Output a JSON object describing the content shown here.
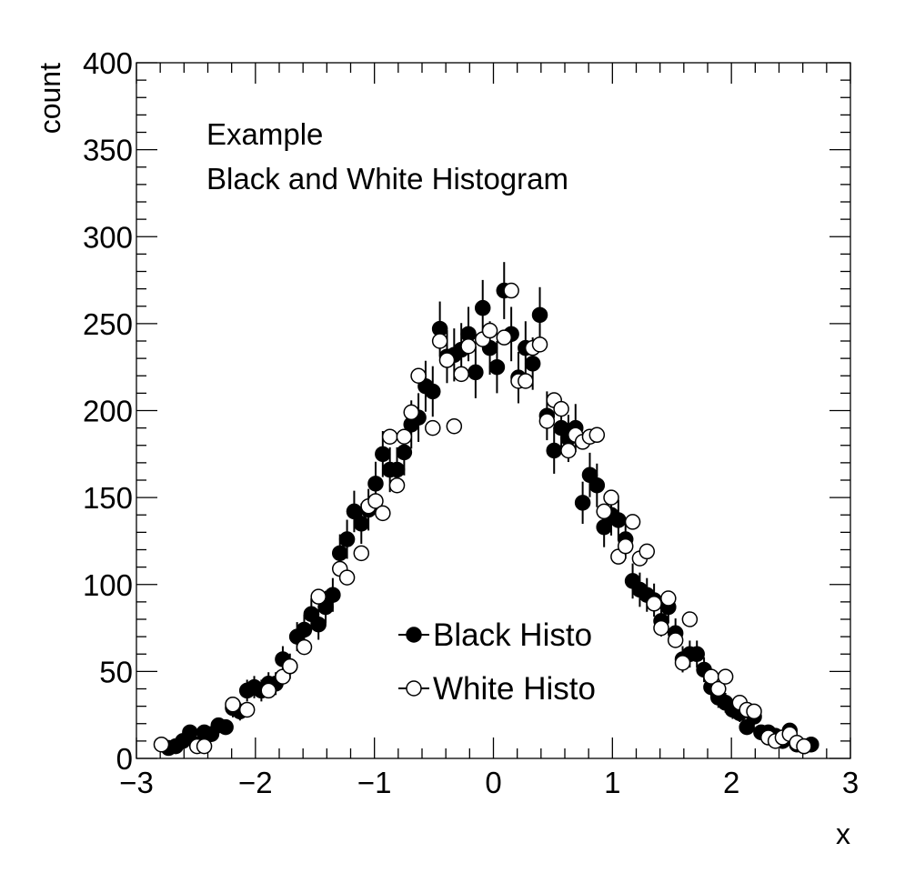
{
  "chart_data": {
    "type": "scatter",
    "title": "",
    "xlabel": "x",
    "ylabel": "count",
    "xlim": [
      -3,
      3
    ],
    "ylim": [
      0,
      400
    ],
    "xticks": [
      "−3",
      "−2",
      "−1",
      "0",
      "1",
      "2",
      "3"
    ],
    "xtick_values": [
      -3,
      -2,
      -1,
      0,
      1,
      2,
      3
    ],
    "yticks": [
      "0",
      "50",
      "100",
      "150",
      "200",
      "250",
      "300",
      "350",
      "400"
    ],
    "ytick_values": [
      0,
      50,
      100,
      150,
      200,
      250,
      300,
      350,
      400
    ],
    "grid": false,
    "annotations": [
      "Example",
      "Black and White Histogram"
    ],
    "legend": {
      "placement": "bottom-center",
      "entries": [
        "Black Histo",
        "White Histo"
      ]
    },
    "series": [
      {
        "name": "Black Histo",
        "marker": "filled-circle",
        "color": "#000000",
        "error_bars": "sqrt",
        "x": [
          -2.73,
          -2.67,
          -2.61,
          -2.55,
          -2.49,
          -2.43,
          -2.37,
          -2.31,
          -2.25,
          -2.19,
          -2.13,
          -2.07,
          -2.01,
          -1.95,
          -1.89,
          -1.83,
          -1.77,
          -1.71,
          -1.65,
          -1.59,
          -1.53,
          -1.47,
          -1.41,
          -1.35,
          -1.29,
          -1.23,
          -1.17,
          -1.11,
          -1.05,
          -0.99,
          -0.93,
          -0.87,
          -0.81,
          -0.75,
          -0.69,
          -0.63,
          -0.57,
          -0.51,
          -0.45,
          -0.39,
          -0.33,
          -0.27,
          -0.21,
          -0.15,
          -0.09,
          -0.03,
          0.03,
          0.09,
          0.15,
          0.21,
          0.27,
          0.33,
          0.39,
          0.45,
          0.51,
          0.57,
          0.63,
          0.69,
          0.75,
          0.81,
          0.87,
          0.93,
          0.99,
          1.05,
          1.11,
          1.17,
          1.23,
          1.29,
          1.35,
          1.41,
          1.47,
          1.53,
          1.59,
          1.65,
          1.71,
          1.77,
          1.83,
          1.89,
          1.95,
          2.01,
          2.07,
          2.13,
          2.19,
          2.25,
          2.31,
          2.37,
          2.43,
          2.49,
          2.55,
          2.61,
          2.67
        ],
        "values": [
          6,
          7,
          10,
          15,
          8,
          15,
          14,
          19,
          18,
          29,
          27,
          39,
          41,
          39,
          43,
          43,
          57,
          53,
          70,
          74,
          83,
          77,
          87,
          94,
          118,
          126,
          142,
          135,
          143,
          158,
          175,
          166,
          166,
          176,
          192,
          196,
          214,
          211,
          247,
          231,
          232,
          235,
          244,
          222,
          259,
          236,
          225,
          269,
          244,
          219,
          236,
          227,
          255,
          197,
          177,
          190,
          184,
          190,
          147,
          163,
          157,
          133,
          140,
          137,
          126,
          102,
          97,
          94,
          91,
          79,
          87,
          72,
          57,
          60,
          60,
          51,
          41,
          35,
          32,
          28,
          26,
          18,
          24,
          15,
          15,
          13,
          10,
          16,
          8,
          7,
          8
        ]
      },
      {
        "name": "White Histo",
        "marker": "open-circle",
        "color": "#000000",
        "error_bars": "none",
        "x": [
          -2.79,
          -2.49,
          -2.43,
          -2.19,
          -2.07,
          -1.89,
          -1.77,
          -1.71,
          -1.59,
          -1.47,
          -1.29,
          -1.23,
          -1.11,
          -1.05,
          -0.99,
          -0.93,
          -0.87,
          -0.81,
          -0.75,
          -0.69,
          -0.63,
          -0.51,
          -0.45,
          -0.39,
          -0.33,
          -0.27,
          -0.21,
          -0.09,
          -0.03,
          0.09,
          0.15,
          0.21,
          0.27,
          0.33,
          0.39,
          0.45,
          0.51,
          0.57,
          0.63,
          0.69,
          0.75,
          0.81,
          0.87,
          0.93,
          0.99,
          1.05,
          1.11,
          1.17,
          1.23,
          1.29,
          1.35,
          1.41,
          1.47,
          1.53,
          1.59,
          1.65,
          1.83,
          1.89,
          1.95,
          2.07,
          2.13,
          2.19,
          2.31,
          2.37,
          2.43,
          2.49,
          2.55,
          2.61
        ],
        "values": [
          8,
          7,
          7,
          31,
          28,
          39,
          47,
          53,
          64,
          93,
          109,
          104,
          118,
          145,
          148,
          141,
          185,
          157,
          185,
          199,
          220,
          190,
          240,
          229,
          191,
          221,
          237,
          241,
          246,
          242,
          269,
          217,
          217,
          236,
          238,
          194,
          206,
          201,
          177,
          186,
          182,
          185,
          186,
          142,
          150,
          116,
          122,
          136,
          115,
          119,
          89,
          75,
          92,
          68,
          55,
          80,
          47,
          40,
          47,
          32,
          28,
          27,
          12,
          10,
          12,
          14,
          9,
          7
        ]
      }
    ]
  }
}
